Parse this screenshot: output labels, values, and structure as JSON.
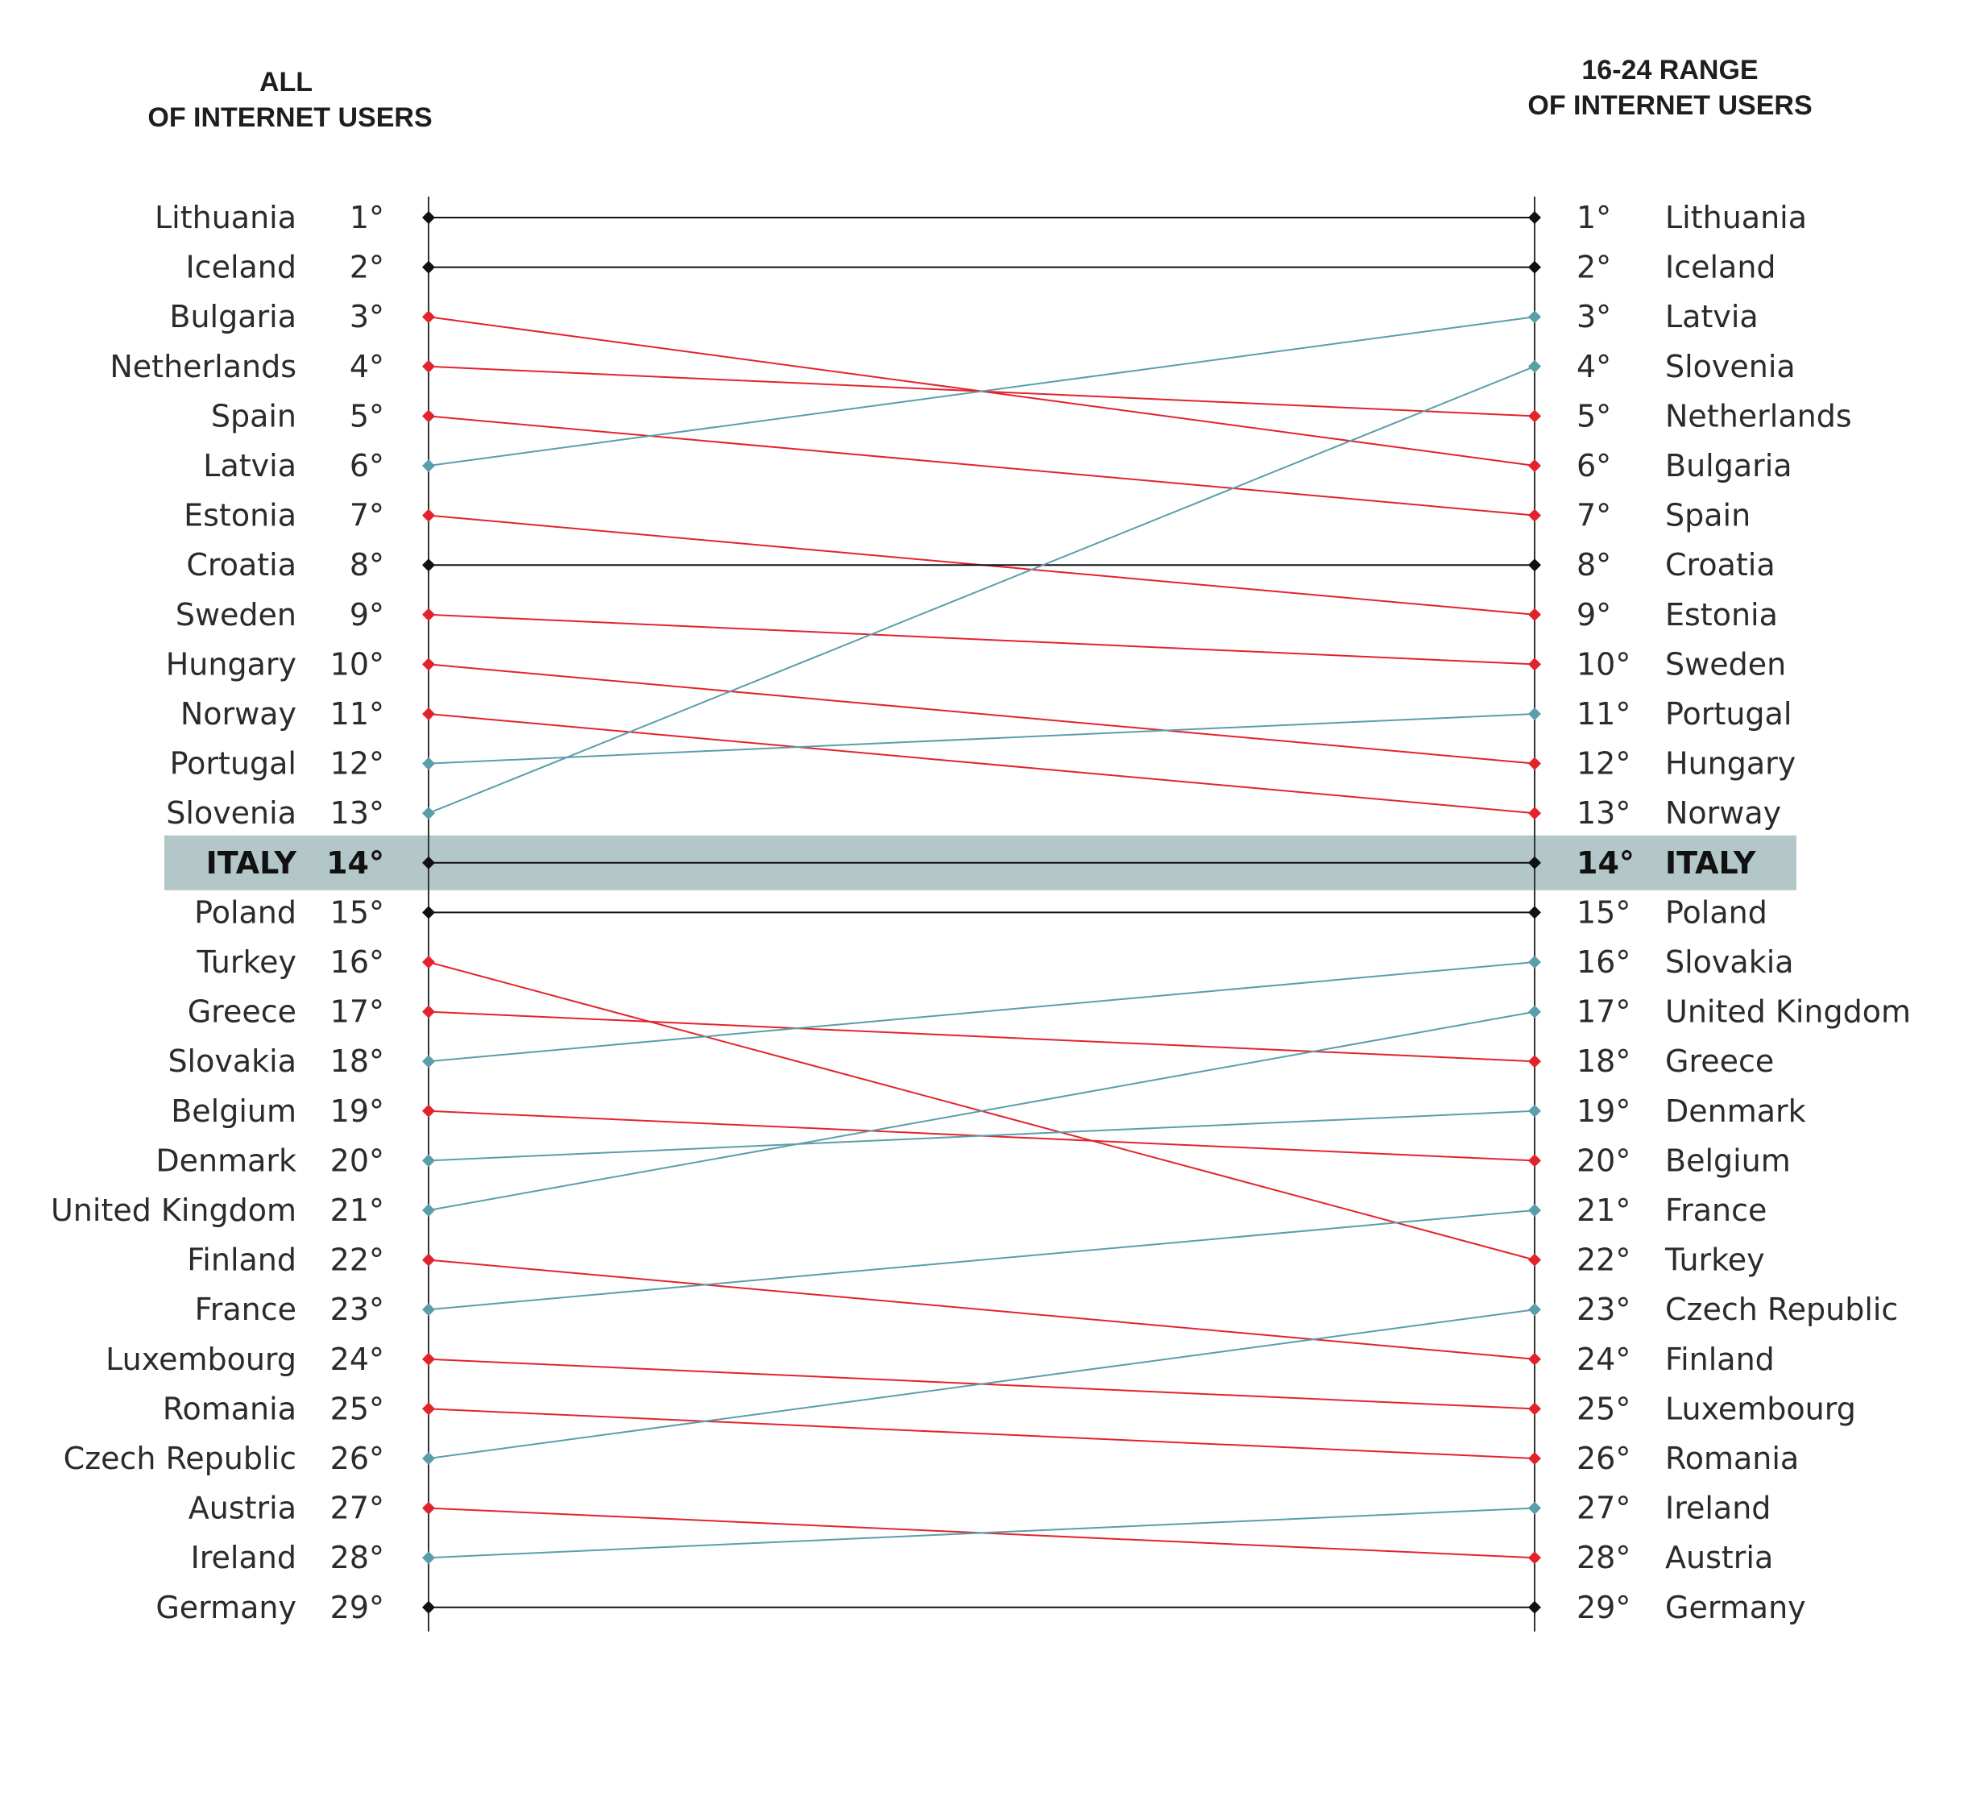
{
  "header": {
    "left_line1": "ALL",
    "left_line2": "OF INTERNET USERS",
    "right_line1": "16-24 RANGE",
    "right_line2": "OF INTERNET USERS"
  },
  "colors": {
    "same": "#111111",
    "down": "#e3232c",
    "up": "#5a9eaa",
    "highlight_band": "#b3c6c8",
    "axis": "#333333"
  },
  "chart_data": {
    "type": "slope",
    "highlight": "ITALY",
    "left_axis_title": "ALL OF INTERNET USERS",
    "right_axis_title": "16-24 RANGE OF INTERNET USERS",
    "left_ranking": [
      "Lithuania",
      "Iceland",
      "Bulgaria",
      "Netherlands",
      "Spain",
      "Latvia",
      "Estonia",
      "Croatia",
      "Sweden",
      "Hungary",
      "Norway",
      "Portugal",
      "Slovenia",
      "ITALY",
      "Poland",
      "Turkey",
      "Greece",
      "Slovakia",
      "Belgium",
      "Denmark",
      "United Kingdom",
      "Finland",
      "France",
      "Luxembourg",
      "Romania",
      "Czech Republic",
      "Austria",
      "Ireland",
      "Germany"
    ],
    "right_ranking": [
      "Lithuania",
      "Iceland",
      "Latvia",
      "Slovenia",
      "Netherlands",
      "Bulgaria",
      "Spain",
      "Croatia",
      "Estonia",
      "Sweden",
      "Portugal",
      "Hungary",
      "Norway",
      "ITALY",
      "Poland",
      "Slovakia",
      "United Kingdom",
      "Greece",
      "Denmark",
      "Belgium",
      "France",
      "Turkey",
      "Czech Republic",
      "Finland",
      "Luxembourg",
      "Romania",
      "Ireland",
      "Austria",
      "Germany"
    ],
    "rank_labels": [
      "1°",
      "2°",
      "3°",
      "4°",
      "5°",
      "6°",
      "7°",
      "8°",
      "9°",
      "10°",
      "11°",
      "12°",
      "13°",
      "14°",
      "15°",
      "16°",
      "17°",
      "18°",
      "19°",
      "20°",
      "21°",
      "22°",
      "23°",
      "24°",
      "25°",
      "26°",
      "27°",
      "28°",
      "29°"
    ]
  }
}
